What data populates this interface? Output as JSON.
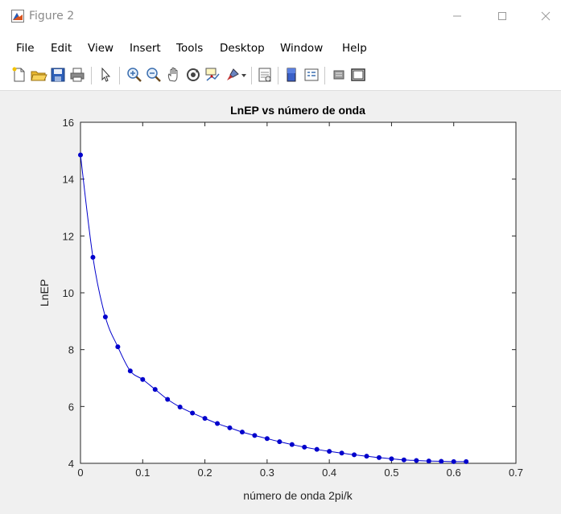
{
  "window": {
    "title": "Figure 2"
  },
  "menu": [
    "File",
    "Edit",
    "View",
    "Insert",
    "Tools",
    "Desktop",
    "Window",
    "Help"
  ],
  "toolbar": {
    "buttons": [
      "new-figure-icon",
      "open-file-icon",
      "save-icon",
      "print-icon",
      "pointer-icon",
      "zoom-in-icon",
      "zoom-out-icon",
      "pan-hand-icon",
      "rotate-3d-icon",
      "data-cursor-icon",
      "brush-icon",
      "link-plot-icon",
      "colorbar-icon",
      "legend-icon",
      "hide-plot-tools-icon",
      "show-plot-tools-icon"
    ]
  },
  "colors": {
    "series": "#0000cc",
    "axes_bg": "#ffffff",
    "figure_bg": "#f0f0f0"
  },
  "chart_data": {
    "type": "line",
    "title": "LnEP vs número de onda",
    "xlabel": "número de onda 2pi/k",
    "ylabel": "LnEP",
    "xlim": [
      0,
      0.7
    ],
    "ylim": [
      4,
      16
    ],
    "xticks": [
      "0",
      "0.1",
      "0.2",
      "0.3",
      "0.4",
      "0.5",
      "0.6",
      "0.7"
    ],
    "yticks": [
      "4",
      "6",
      "8",
      "10",
      "12",
      "14",
      "16"
    ],
    "grid": false,
    "marker": "dot",
    "x": [
      0,
      0.02,
      0.04,
      0.06,
      0.08,
      0.1,
      0.12,
      0.14,
      0.16,
      0.18,
      0.2,
      0.22,
      0.24,
      0.26,
      0.28,
      0.3,
      0.32,
      0.34,
      0.36,
      0.38,
      0.4,
      0.42,
      0.44,
      0.46,
      0.48,
      0.5,
      0.52,
      0.54,
      0.56,
      0.58,
      0.6,
      0.62
    ],
    "y": [
      14.85,
      11.25,
      9.15,
      8.1,
      7.25,
      6.95,
      6.6,
      6.25,
      5.98,
      5.77,
      5.58,
      5.4,
      5.25,
      5.1,
      4.98,
      4.87,
      4.76,
      4.66,
      4.57,
      4.49,
      4.42,
      4.36,
      4.3,
      4.25,
      4.2,
      4.16,
      4.12,
      4.1,
      4.08,
      4.07,
      4.06,
      4.06
    ]
  }
}
